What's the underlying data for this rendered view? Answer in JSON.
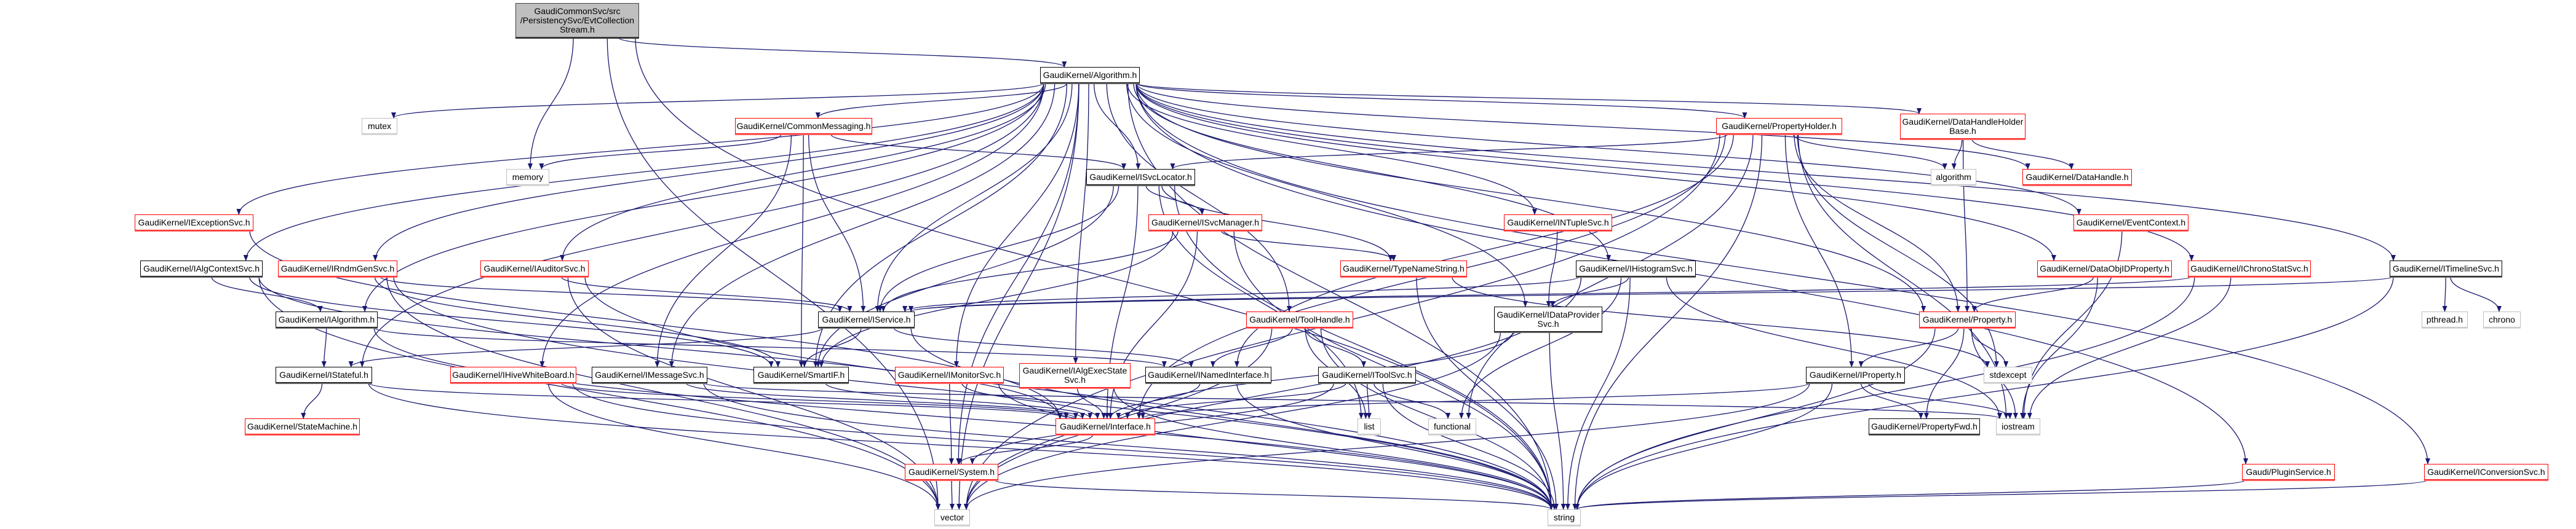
{
  "graph": {
    "edge_color": "#191970",
    "style_colors": {
      "normal": "#000000",
      "truncated": "#ff0000",
      "system": "#bfbfbf",
      "root_fill": "#bfbfbf"
    },
    "nodes": [
      {
        "id": "root",
        "label": "GaudiCommonSvc/src\n/PersistencySvc/EvtCollection\nStream.h",
        "style": "root"
      },
      {
        "id": "algorithm_h",
        "label": "GaudiKernel/Algorithm.h",
        "style": "normal"
      },
      {
        "id": "mutex",
        "label": "mutex",
        "style": "system"
      },
      {
        "id": "commonmsg",
        "label": "GaudiKernel/CommonMessaging.h",
        "style": "truncated"
      },
      {
        "id": "propholder",
        "label": "GaudiKernel/PropertyHolder.h",
        "style": "truncated"
      },
      {
        "id": "dhhb",
        "label": "GaudiKernel/DataHandleHolder\nBase.h",
        "style": "truncated"
      },
      {
        "id": "memory",
        "label": "memory",
        "style": "system"
      },
      {
        "id": "isvclocator",
        "label": "GaudiKernel/ISvcLocator.h",
        "style": "normal"
      },
      {
        "id": "algorithm",
        "label": "algorithm",
        "style": "system"
      },
      {
        "id": "datahandle",
        "label": "GaudiKernel/DataHandle.h",
        "style": "truncated"
      },
      {
        "id": "iexception",
        "label": "GaudiKernel/IExceptionSvc.h",
        "style": "truncated"
      },
      {
        "id": "isvcmanager",
        "label": "GaudiKernel/ISvcManager.h",
        "style": "truncated"
      },
      {
        "id": "intuple",
        "label": "GaudiKernel/INTupleSvc.h",
        "style": "truncated"
      },
      {
        "id": "eventctx",
        "label": "GaudiKernel/EventContext.h",
        "style": "truncated"
      },
      {
        "id": "ialgcontext",
        "label": "GaudiKernel/IAlgContextSvc.h",
        "style": "normal"
      },
      {
        "id": "irndm",
        "label": "GaudiKernel/IRndmGenSvc.h",
        "style": "truncated"
      },
      {
        "id": "iauditor",
        "label": "GaudiKernel/IAuditorSvc.h",
        "style": "truncated"
      },
      {
        "id": "typename",
        "label": "GaudiKernel/TypeNameString.h",
        "style": "truncated"
      },
      {
        "id": "ihist",
        "label": "GaudiKernel/IHistogramSvc.h",
        "style": "normal"
      },
      {
        "id": "dataobjid",
        "label": "GaudiKernel/DataObjIDProperty.h",
        "style": "truncated"
      },
      {
        "id": "ichrono",
        "label": "GaudiKernel/IChronoStatSvc.h",
        "style": "truncated"
      },
      {
        "id": "itimeline",
        "label": "GaudiKernel/ITimelineSvc.h",
        "style": "normal"
      },
      {
        "id": "ialgorithm",
        "label": "GaudiKernel/IAlgorithm.h",
        "style": "normal"
      },
      {
        "id": "iservice",
        "label": "GaudiKernel/IService.h",
        "style": "normal"
      },
      {
        "id": "toolhandle",
        "label": "GaudiKernel/ToolHandle.h",
        "style": "truncated"
      },
      {
        "id": "idataprov",
        "label": "GaudiKernel/IDataProvider\nSvc.h",
        "style": "normal"
      },
      {
        "id": "property",
        "label": "GaudiKernel/Property.h",
        "style": "truncated"
      },
      {
        "id": "pthread",
        "label": "pthread.h",
        "style": "system"
      },
      {
        "id": "chrono",
        "label": "chrono",
        "style": "system"
      },
      {
        "id": "istateful",
        "label": "GaudiKernel/IStateful.h",
        "style": "normal"
      },
      {
        "id": "ihive",
        "label": "GaudiKernel/IHiveWhiteBoard.h",
        "style": "truncated"
      },
      {
        "id": "imessage",
        "label": "GaudiKernel/IMessageSvc.h",
        "style": "normal"
      },
      {
        "id": "smartif",
        "label": "GaudiKernel/SmartIF.h",
        "style": "normal"
      },
      {
        "id": "imonitor",
        "label": "GaudiKernel/IMonitorSvc.h",
        "style": "truncated"
      },
      {
        "id": "ialgexec",
        "label": "GaudiKernel/IAlgExecState\nSvc.h",
        "style": "truncated"
      },
      {
        "id": "inamed",
        "label": "GaudiKernel/INamedInterface.h",
        "style": "normal"
      },
      {
        "id": "itoolsvc",
        "label": "GaudiKernel/IToolSvc.h",
        "style": "normal"
      },
      {
        "id": "iproperty",
        "label": "GaudiKernel/IProperty.h",
        "style": "normal"
      },
      {
        "id": "stdexcept",
        "label": "stdexcept",
        "style": "system"
      },
      {
        "id": "statemachine",
        "label": "GaudiKernel/StateMachine.h",
        "style": "truncated"
      },
      {
        "id": "interface",
        "label": "GaudiKernel/Interface.h",
        "style": "truncated"
      },
      {
        "id": "list",
        "label": "list",
        "style": "system"
      },
      {
        "id": "functional",
        "label": "functional",
        "style": "system"
      },
      {
        "id": "propfwd",
        "label": "GaudiKernel/PropertyFwd.h",
        "style": "normal"
      },
      {
        "id": "iostream",
        "label": "iostream",
        "style": "system"
      },
      {
        "id": "system",
        "label": "GaudiKernel/System.h",
        "style": "truncated"
      },
      {
        "id": "plugin",
        "label": "Gaudi/PluginService.h",
        "style": "truncated"
      },
      {
        "id": "iconversion",
        "label": "GaudiKernel/IConversionSvc.h",
        "style": "truncated"
      },
      {
        "id": "vector",
        "label": "vector",
        "style": "system"
      },
      {
        "id": "string",
        "label": "string",
        "style": "system"
      }
    ],
    "edges": [
      [
        "root",
        "algorithm_h"
      ],
      [
        "root",
        "memory"
      ],
      [
        "root",
        "vector"
      ],
      [
        "root",
        "string"
      ],
      [
        "algorithm_h",
        "mutex"
      ],
      [
        "algorithm_h",
        "commonmsg"
      ],
      [
        "algorithm_h",
        "propholder"
      ],
      [
        "algorithm_h",
        "dhhb"
      ],
      [
        "algorithm_h",
        "isvclocator"
      ],
      [
        "algorithm_h",
        "datahandle"
      ],
      [
        "algorithm_h",
        "iexception"
      ],
      [
        "algorithm_h",
        "intuple"
      ],
      [
        "algorithm_h",
        "eventctx"
      ],
      [
        "algorithm_h",
        "ialgcontext"
      ],
      [
        "algorithm_h",
        "irndm"
      ],
      [
        "algorithm_h",
        "iauditor"
      ],
      [
        "algorithm_h",
        "ihist"
      ],
      [
        "algorithm_h",
        "dataobjid"
      ],
      [
        "algorithm_h",
        "ichrono"
      ],
      [
        "algorithm_h",
        "itimeline"
      ],
      [
        "algorithm_h",
        "ialgorithm"
      ],
      [
        "algorithm_h",
        "iservice"
      ],
      [
        "algorithm_h",
        "toolhandle"
      ],
      [
        "algorithm_h",
        "idataprov"
      ],
      [
        "algorithm_h",
        "property"
      ],
      [
        "algorithm_h",
        "istateful"
      ],
      [
        "algorithm_h",
        "ihive"
      ],
      [
        "algorithm_h",
        "imessage"
      ],
      [
        "algorithm_h",
        "smartif"
      ],
      [
        "algorithm_h",
        "imonitor"
      ],
      [
        "algorithm_h",
        "ialgexec"
      ],
      [
        "algorithm_h",
        "system"
      ],
      [
        "algorithm_h",
        "plugin"
      ],
      [
        "algorithm_h",
        "iconversion"
      ],
      [
        "algorithm_h",
        "vector"
      ],
      [
        "algorithm_h",
        "string"
      ],
      [
        "commonmsg",
        "memory"
      ],
      [
        "commonmsg",
        "isvclocator"
      ],
      [
        "commonmsg",
        "iservice"
      ],
      [
        "commonmsg",
        "imessage"
      ],
      [
        "commonmsg",
        "smartif"
      ],
      [
        "propholder",
        "isvclocator"
      ],
      [
        "propholder",
        "inamed"
      ],
      [
        "propholder",
        "algorithm"
      ],
      [
        "propholder",
        "property"
      ],
      [
        "propholder",
        "iproperty"
      ],
      [
        "propholder",
        "stdexcept"
      ],
      [
        "propholder",
        "iostream"
      ],
      [
        "propholder",
        "interface"
      ],
      [
        "propholder",
        "string"
      ],
      [
        "propholder",
        "vector"
      ],
      [
        "propholder",
        "functional"
      ],
      [
        "dhhb",
        "algorithm"
      ],
      [
        "dhhb",
        "datahandle"
      ],
      [
        "dhhb",
        "property"
      ],
      [
        "isvclocator",
        "isvcmanager"
      ],
      [
        "isvclocator",
        "typename"
      ],
      [
        "isvclocator",
        "iservice"
      ],
      [
        "isvclocator",
        "smartif"
      ],
      [
        "isvclocator",
        "interface"
      ],
      [
        "isvclocator",
        "string"
      ],
      [
        "isvclocator",
        "list"
      ],
      [
        "isvcmanager",
        "typename"
      ],
      [
        "isvcmanager",
        "iservice"
      ],
      [
        "isvcmanager",
        "smartif"
      ],
      [
        "isvcmanager",
        "interface"
      ],
      [
        "isvcmanager",
        "string"
      ],
      [
        "typename",
        "string"
      ],
      [
        "typename",
        "stdexcept"
      ],
      [
        "iexception",
        "interface"
      ],
      [
        "ialgcontext",
        "ialgorithm"
      ],
      [
        "ialgcontext",
        "smartif"
      ],
      [
        "ialgcontext",
        "interface"
      ],
      [
        "ialgcontext",
        "vector"
      ],
      [
        "irndm",
        "iservice"
      ],
      [
        "irndm",
        "smartif"
      ],
      [
        "irndm",
        "string"
      ],
      [
        "irndm",
        "vector"
      ],
      [
        "iauditor",
        "iservice"
      ],
      [
        "iauditor",
        "string"
      ],
      [
        "iauditor",
        "vector"
      ],
      [
        "ialgorithm",
        "istateful"
      ],
      [
        "ialgorithm",
        "inamed"
      ],
      [
        "ialgorithm",
        "string"
      ],
      [
        "iservice",
        "istateful"
      ],
      [
        "iservice",
        "inamed"
      ],
      [
        "iservice",
        "smartif"
      ],
      [
        "iservice",
        "string"
      ],
      [
        "istateful",
        "statemachine"
      ],
      [
        "istateful",
        "interface"
      ],
      [
        "istateful",
        "string"
      ],
      [
        "ihive",
        "interface"
      ],
      [
        "ihive",
        "string"
      ],
      [
        "ihive",
        "vector"
      ],
      [
        "imessage",
        "interface"
      ],
      [
        "imessage",
        "iostream"
      ],
      [
        "imessage",
        "string"
      ],
      [
        "smartif",
        "interface"
      ],
      [
        "imonitor",
        "interface"
      ],
      [
        "imonitor",
        "system"
      ],
      [
        "imonitor",
        "string"
      ],
      [
        "ialgexec",
        "interface"
      ],
      [
        "ialgexec",
        "string"
      ],
      [
        "inamed",
        "interface"
      ],
      [
        "inamed",
        "string"
      ],
      [
        "toolhandle",
        "inamed"
      ],
      [
        "toolhandle",
        "itoolsvc"
      ],
      [
        "toolhandle",
        "list"
      ],
      [
        "toolhandle",
        "string"
      ],
      [
        "toolhandle",
        "vector"
      ],
      [
        "itoolsvc",
        "interface"
      ],
      [
        "itoolsvc",
        "list"
      ],
      [
        "itoolsvc",
        "functional"
      ],
      [
        "itoolsvc",
        "string"
      ],
      [
        "itoolsvc",
        "system"
      ],
      [
        "intuple",
        "idataprov"
      ],
      [
        "ihist",
        "idataprov"
      ],
      [
        "ihist",
        "iservice"
      ],
      [
        "ihist",
        "functional"
      ],
      [
        "ihist",
        "string"
      ],
      [
        "ihist",
        "vector"
      ],
      [
        "ihist",
        "iostream"
      ],
      [
        "idataprov",
        "interface"
      ],
      [
        "idataprov",
        "string"
      ],
      [
        "idataprov",
        "vector"
      ],
      [
        "property",
        "iproperty"
      ],
      [
        "property",
        "stdexcept"
      ],
      [
        "property",
        "iostream"
      ],
      [
        "property",
        "propfwd"
      ],
      [
        "property",
        "string"
      ],
      [
        "iproperty",
        "interface"
      ],
      [
        "iproperty",
        "propfwd"
      ],
      [
        "iproperty",
        "iostream"
      ],
      [
        "iproperty",
        "string"
      ],
      [
        "iproperty",
        "vector"
      ],
      [
        "eventctx",
        "iostream"
      ],
      [
        "dataobjid",
        "property"
      ],
      [
        "dataobjid",
        "iostream"
      ],
      [
        "ichrono",
        "iservice"
      ],
      [
        "ichrono",
        "iostream"
      ],
      [
        "ichrono",
        "string"
      ],
      [
        "itimeline",
        "iservice"
      ],
      [
        "itimeline",
        "pthread"
      ],
      [
        "itimeline",
        "chrono"
      ],
      [
        "itimeline",
        "string"
      ],
      [
        "interface",
        "system"
      ],
      [
        "system",
        "string"
      ],
      [
        "system",
        "vector"
      ],
      [
        "plugin",
        "string"
      ],
      [
        "iconversion",
        "string"
      ]
    ]
  }
}
